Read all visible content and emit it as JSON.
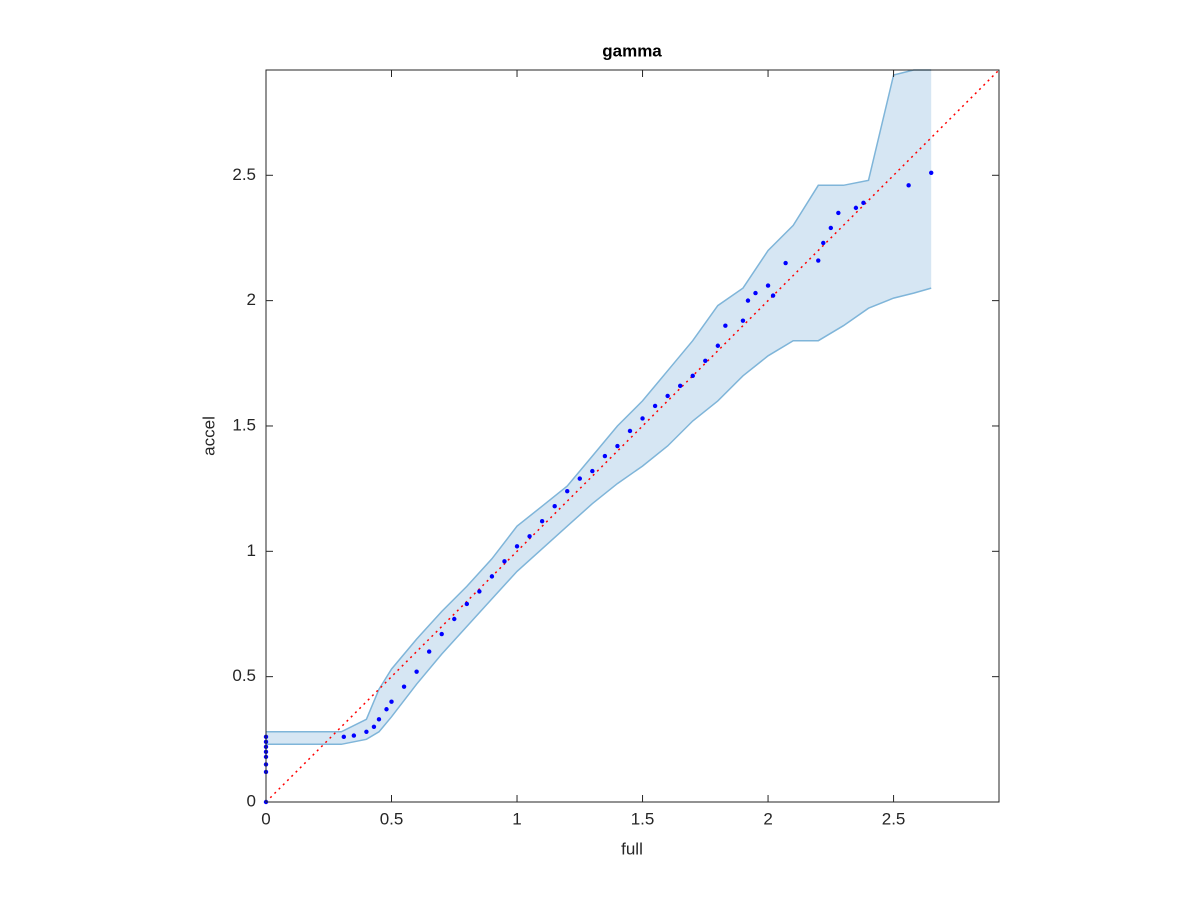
{
  "chart_data": {
    "type": "scatter",
    "title": "gamma",
    "x_label": "full",
    "y_label": "accel",
    "xlim": [
      0,
      2.92
    ],
    "ylim": [
      0,
      2.92
    ],
    "xticks": [
      0,
      0.5,
      1,
      1.5,
      2,
      2.5
    ],
    "yticks": [
      0,
      0.5,
      1,
      1.5,
      2,
      2.5
    ],
    "band": {
      "color": "#d6e6f3",
      "edge_color": "#7fb5d9",
      "x": [
        0,
        0.3,
        0.4,
        0.45,
        0.5,
        0.6,
        0.7,
        0.8,
        0.9,
        1.0,
        1.1,
        1.2,
        1.3,
        1.4,
        1.5,
        1.6,
        1.7,
        1.8,
        1.9,
        2.0,
        2.1,
        2.2,
        2.3,
        2.4,
        2.5,
        2.58,
        2.65
      ],
      "upper": [
        0.28,
        0.28,
        0.33,
        0.45,
        0.53,
        0.65,
        0.76,
        0.86,
        0.97,
        1.1,
        1.18,
        1.26,
        1.38,
        1.5,
        1.6,
        1.72,
        1.84,
        1.98,
        2.05,
        2.2,
        2.3,
        2.46,
        2.46,
        2.48,
        2.9,
        2.92,
        2.92
      ],
      "lower": [
        0.23,
        0.23,
        0.25,
        0.28,
        0.34,
        0.47,
        0.59,
        0.7,
        0.81,
        0.92,
        1.01,
        1.1,
        1.19,
        1.27,
        1.34,
        1.42,
        1.52,
        1.6,
        1.7,
        1.78,
        1.84,
        1.84,
        1.9,
        1.97,
        2.01,
        2.03,
        2.05
      ]
    },
    "reference": {
      "color": "#ff0000",
      "x": [
        0,
        2.92
      ],
      "y": [
        0,
        2.92
      ]
    },
    "points": {
      "color": "#0000ff",
      "x": [
        0,
        0,
        0,
        0,
        0,
        0,
        0,
        0,
        0.31,
        0.35,
        0.4,
        0.43,
        0.45,
        0.48,
        0.5,
        0.55,
        0.6,
        0.65,
        0.7,
        0.75,
        0.8,
        0.85,
        0.9,
        0.95,
        1.0,
        1.05,
        1.1,
        1.15,
        1.2,
        1.25,
        1.3,
        1.35,
        1.4,
        1.45,
        1.5,
        1.55,
        1.6,
        1.65,
        1.7,
        1.75,
        1.8,
        1.83,
        1.9,
        1.92,
        1.95,
        2.0,
        2.02,
        2.07,
        2.2,
        2.22,
        2.25,
        2.28,
        2.35,
        2.38,
        2.56,
        2.65
      ],
      "y": [
        0,
        0.12,
        0.15,
        0.18,
        0.2,
        0.22,
        0.24,
        0.26,
        0.26,
        0.265,
        0.28,
        0.3,
        0.33,
        0.37,
        0.4,
        0.46,
        0.52,
        0.6,
        0.67,
        0.73,
        0.79,
        0.84,
        0.9,
        0.96,
        1.02,
        1.06,
        1.12,
        1.18,
        1.24,
        1.29,
        1.32,
        1.38,
        1.42,
        1.48,
        1.53,
        1.58,
        1.62,
        1.66,
        1.7,
        1.76,
        1.82,
        1.9,
        1.92,
        2.0,
        2.03,
        2.06,
        2.02,
        2.15,
        2.16,
        2.23,
        2.29,
        2.35,
        2.37,
        2.39,
        2.46,
        2.51
      ]
    }
  }
}
